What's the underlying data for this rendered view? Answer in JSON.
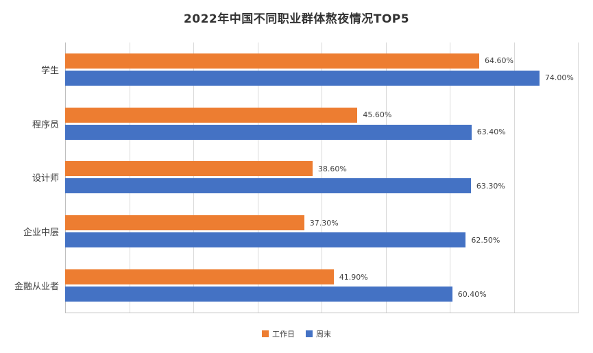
{
  "title": "2022年中国不同职业群体熬夜情况TOP5",
  "chart_data": {
    "type": "bar",
    "orientation": "horizontal",
    "title": "2022年中国不同职业群体熬夜情况TOP5",
    "categories": [
      "学生",
      "程序员",
      "设计师",
      "企业中层",
      "金融从业者"
    ],
    "series": [
      {
        "name": "工作日",
        "color": "#ED7D31",
        "values": [
          64.6,
          45.6,
          38.6,
          37.3,
          41.9
        ],
        "labels": [
          "64.60%",
          "45.60%",
          "38.60%",
          "37.30%",
          "41.90%"
        ]
      },
      {
        "name": "周末",
        "color": "#4472C4",
        "values": [
          74.0,
          63.4,
          63.3,
          62.5,
          60.4
        ],
        "labels": [
          "74.00%",
          "63.40%",
          "63.30%",
          "62.50%",
          "60.40%"
        ]
      }
    ],
    "xlabel": "",
    "ylabel": "",
    "xlim": [
      0,
      80
    ],
    "gridline_step": 10,
    "grid": true,
    "legend_position": "bottom"
  }
}
